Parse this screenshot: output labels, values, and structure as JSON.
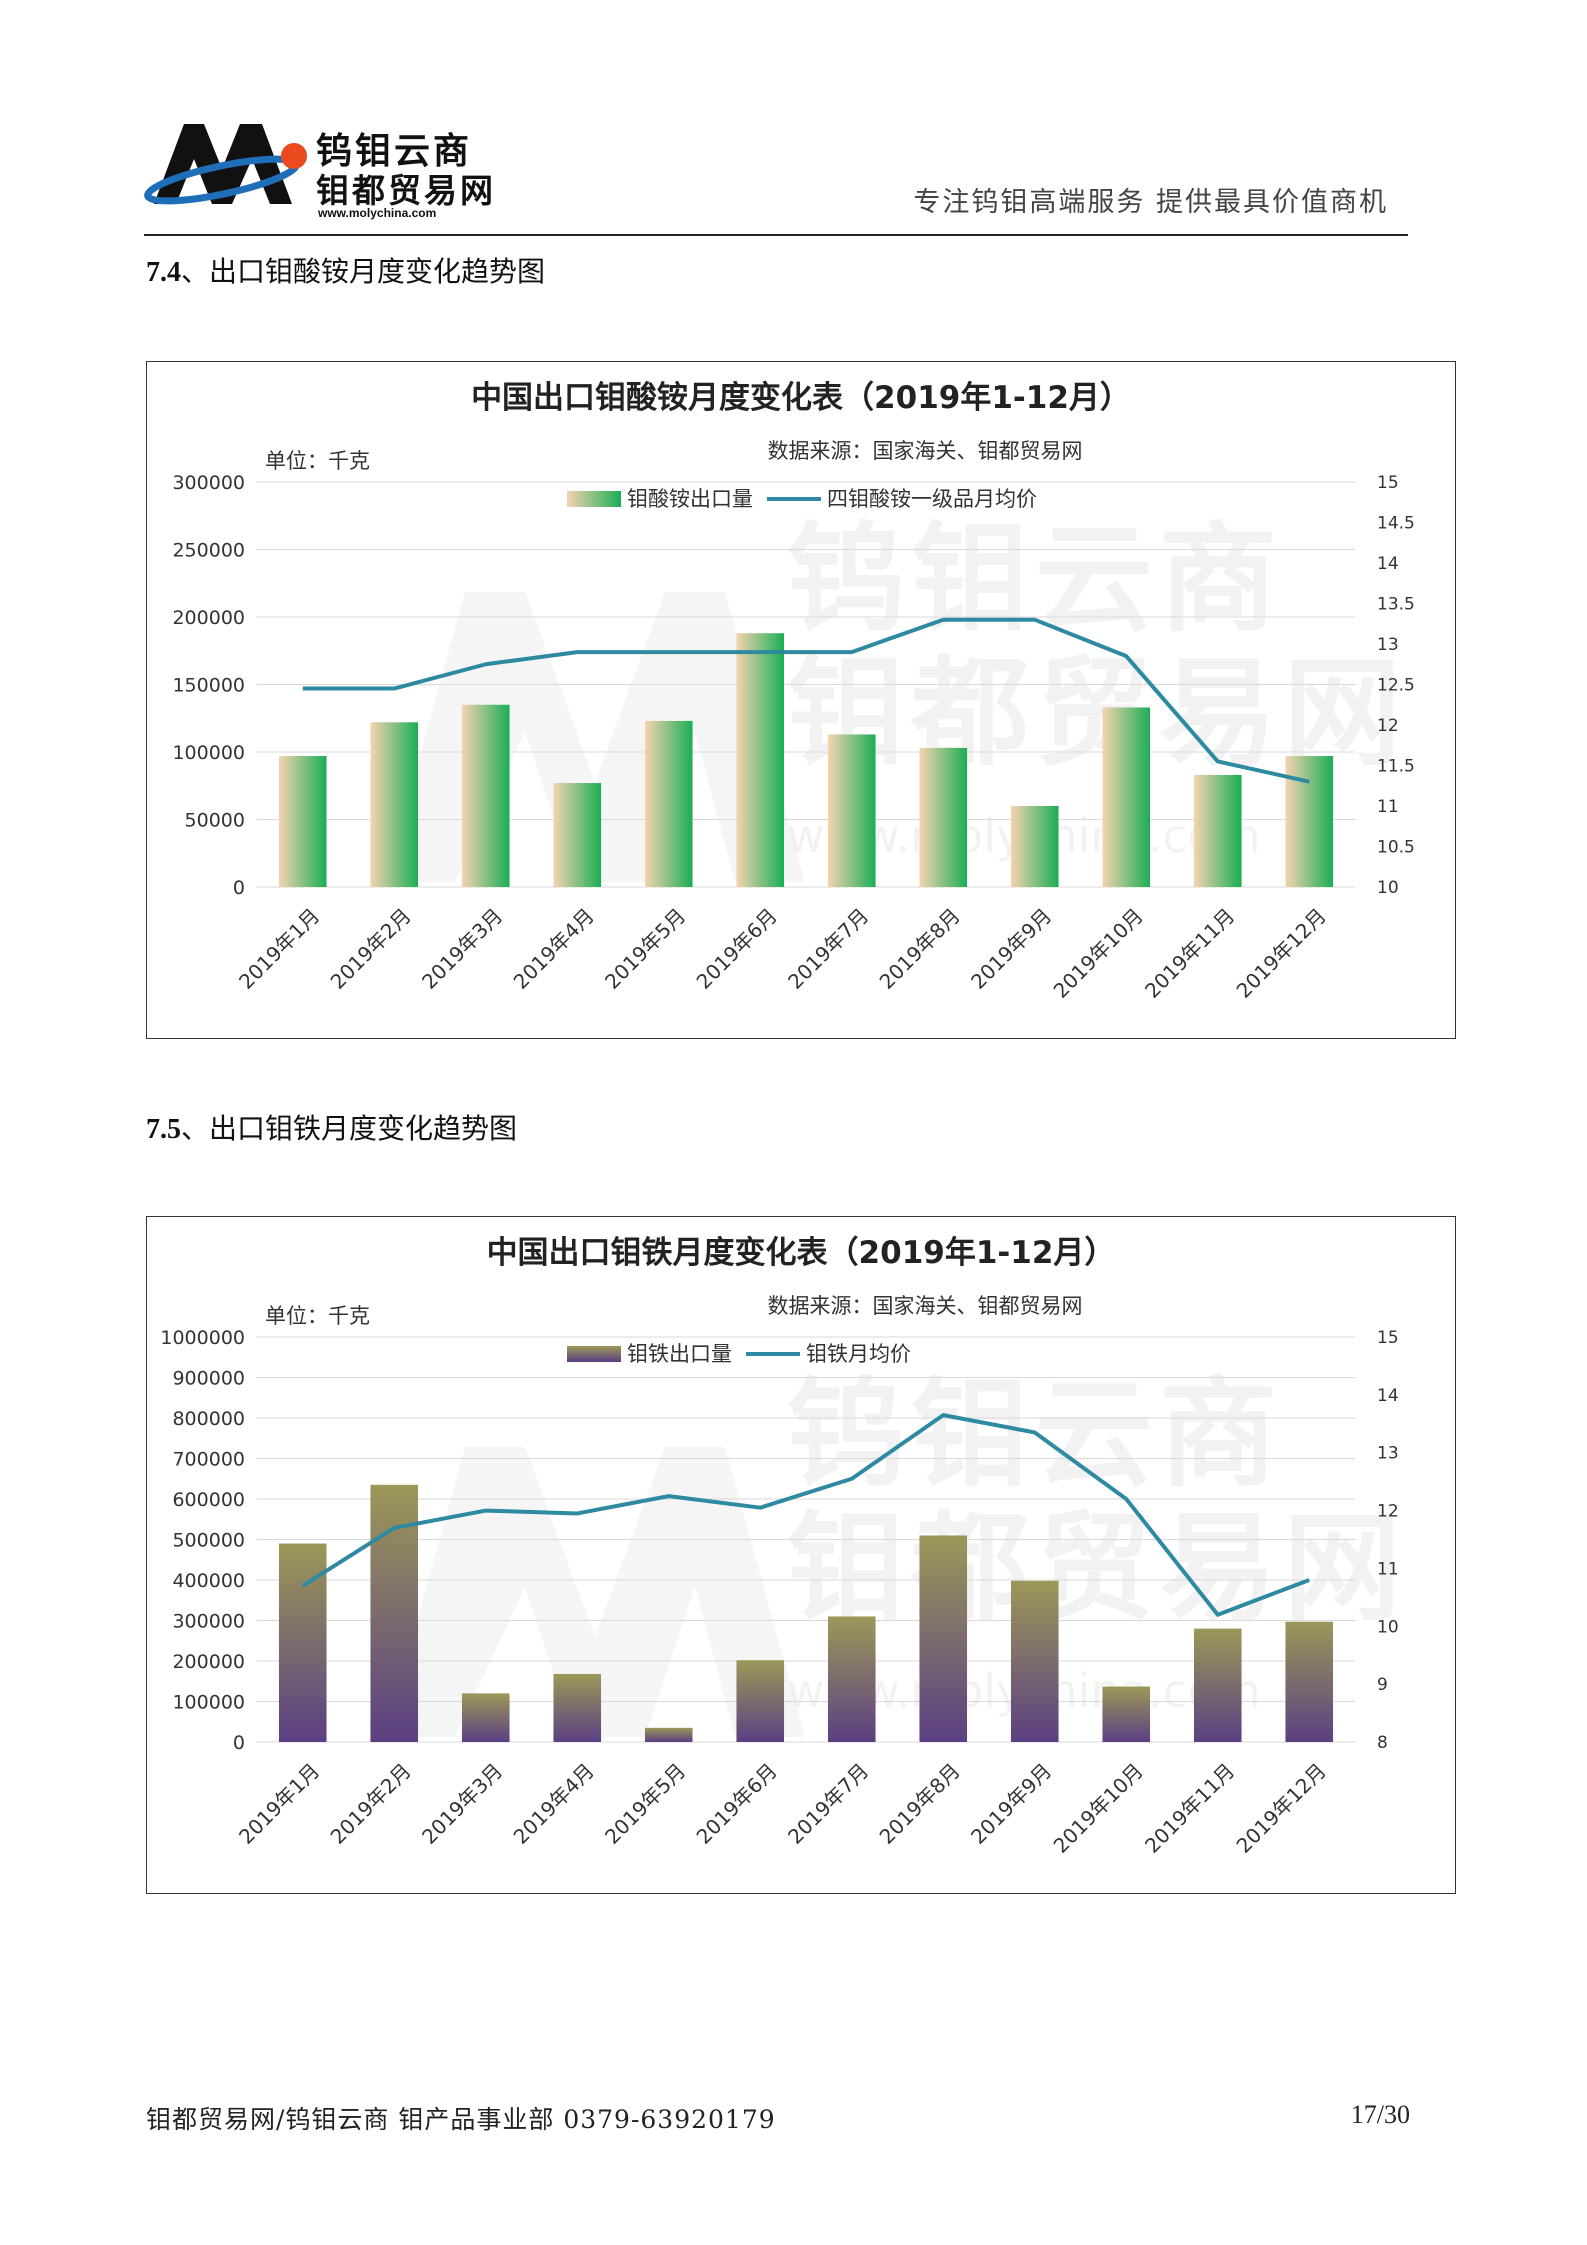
{
  "header": {
    "logo_line1": "钨钼云商",
    "logo_line2": "钼都贸易网",
    "logo_url": "www.molychina.com",
    "slogan": "专注钨钼高端服务   提供最具价值商机"
  },
  "sections": [
    {
      "number": "7.4",
      "title": "、出口钼酸铵月度变化趋势图"
    },
    {
      "number": "7.5",
      "title": "、出口钼铁月度变化趋势图"
    }
  ],
  "watermark": {
    "line1": "钨钼云商",
    "line2": "钼都贸易网",
    "url": "www.molychina.com"
  },
  "colors": {
    "line": "#2e8aa0",
    "bar1_top": "#1aae55",
    "bar1_side": "#f6d3b0",
    "bar2_top": "#9c9858",
    "bar2_bottom": "#5b3f82"
  },
  "chart_data": [
    {
      "type": "bar",
      "title": "中国出口钼酸铵月度变化表（2019年1-12月）",
      "subtitle": "数据来源：国家海关、钼都贸易网",
      "unit_label": "单位：千克",
      "categories": [
        "2019年1月",
        "2019年2月",
        "2019年3月",
        "2019年4月",
        "2019年5月",
        "2019年6月",
        "2019年7月",
        "2019年8月",
        "2019年9月",
        "2019年10月",
        "2019年11月",
        "2019年12月"
      ],
      "series": [
        {
          "name": "钼酸铵出口量",
          "kind": "bar",
          "axis": "left",
          "values": [
            97000,
            122000,
            135000,
            77000,
            123000,
            188000,
            113000,
            103000,
            60000,
            133000,
            83000,
            97000
          ]
        },
        {
          "name": "四钼酸铵一级品月均价",
          "kind": "line",
          "axis": "right",
          "values": [
            12.45,
            12.45,
            12.75,
            12.9,
            12.9,
            12.9,
            12.9,
            13.3,
            13.3,
            12.85,
            11.55,
            11.3
          ]
        }
      ],
      "yleft": {
        "min": 0,
        "max": 300000,
        "ticks": [
          "0",
          "50000",
          "100000",
          "150000",
          "200000",
          "250000",
          "300000"
        ]
      },
      "yright": {
        "min": 10,
        "max": 15,
        "ticks": [
          "10",
          "10.5",
          "11",
          "11.5",
          "12",
          "12.5",
          "13",
          "13.5",
          "14",
          "14.5",
          "15"
        ]
      },
      "legend": "top-center",
      "grid": true
    },
    {
      "type": "bar",
      "title": "中国出口钼铁月度变化表（2019年1-12月）",
      "subtitle": "数据来源：国家海关、钼都贸易网",
      "unit_label": "单位：千克",
      "categories": [
        "2019年1月",
        "2019年2月",
        "2019年3月",
        "2019年4月",
        "2019年5月",
        "2019年6月",
        "2019年7月",
        "2019年8月",
        "2019年9月",
        "2019年10月",
        "2019年11月",
        "2019年12月"
      ],
      "series": [
        {
          "name": "钼铁出口量",
          "kind": "bar",
          "axis": "left",
          "values": [
            490000,
            635000,
            120000,
            168000,
            35000,
            202000,
            310000,
            510000,
            398000,
            137000,
            280000,
            297000
          ]
        },
        {
          "name": "钼铁月均价",
          "kind": "line",
          "axis": "right",
          "values": [
            10.7,
            11.7,
            12.0,
            11.95,
            12.25,
            12.05,
            12.55,
            13.65,
            13.35,
            12.2,
            10.2,
            10.8
          ]
        }
      ],
      "yleft": {
        "min": 0,
        "max": 1000000,
        "ticks": [
          "0",
          "100000",
          "200000",
          "300000",
          "400000",
          "500000",
          "600000",
          "700000",
          "800000",
          "900000",
          "1000000"
        ]
      },
      "yright": {
        "min": 8,
        "max": 15,
        "ticks": [
          "8",
          "9",
          "10",
          "11",
          "12",
          "13",
          "14",
          "15"
        ]
      },
      "legend": "top-center",
      "grid": true
    }
  ],
  "footer": {
    "left": "钼都贸易网/钨钼云商  钼产品事业部 0379-63920179",
    "page": "17/30"
  }
}
